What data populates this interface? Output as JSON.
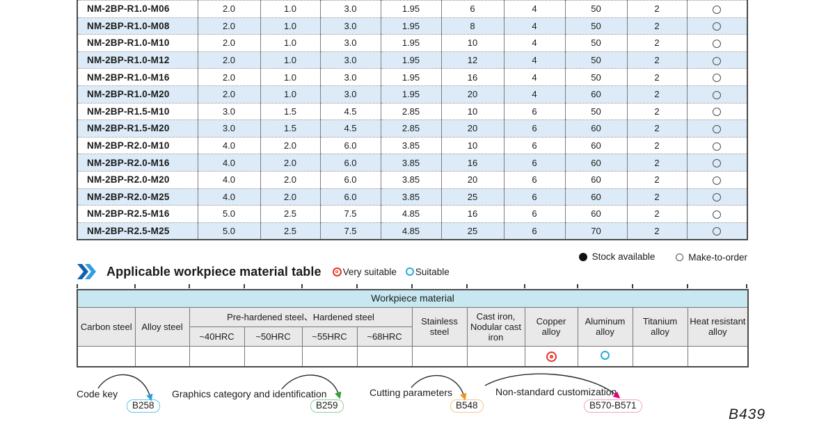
{
  "page": {
    "number": "B439"
  },
  "spec_table": {
    "rows": [
      {
        "model": "NM-2BP-R1.0-M06",
        "values": [
          "2.0",
          "1.0",
          "3.0",
          "1.95",
          "6",
          "4",
          "50",
          "2"
        ],
        "stock": "make_to_order"
      },
      {
        "model": "NM-2BP-R1.0-M08",
        "values": [
          "2.0",
          "1.0",
          "3.0",
          "1.95",
          "8",
          "4",
          "50",
          "2"
        ],
        "stock": "make_to_order"
      },
      {
        "model": "NM-2BP-R1.0-M10",
        "values": [
          "2.0",
          "1.0",
          "3.0",
          "1.95",
          "10",
          "4",
          "50",
          "2"
        ],
        "stock": "make_to_order"
      },
      {
        "model": "NM-2BP-R1.0-M12",
        "values": [
          "2.0",
          "1.0",
          "3.0",
          "1.95",
          "12",
          "4",
          "50",
          "2"
        ],
        "stock": "make_to_order"
      },
      {
        "model": "NM-2BP-R1.0-M16",
        "values": [
          "2.0",
          "1.0",
          "3.0",
          "1.95",
          "16",
          "4",
          "50",
          "2"
        ],
        "stock": "make_to_order"
      },
      {
        "model": "NM-2BP-R1.0-M20",
        "values": [
          "2.0",
          "1.0",
          "3.0",
          "1.95",
          "20",
          "4",
          "60",
          "2"
        ],
        "stock": "make_to_order"
      },
      {
        "model": "NM-2BP-R1.5-M10",
        "values": [
          "3.0",
          "1.5",
          "4.5",
          "2.85",
          "10",
          "6",
          "50",
          "2"
        ],
        "stock": "make_to_order"
      },
      {
        "model": "NM-2BP-R1.5-M20",
        "values": [
          "3.0",
          "1.5",
          "4.5",
          "2.85",
          "20",
          "6",
          "60",
          "2"
        ],
        "stock": "make_to_order"
      },
      {
        "model": "NM-2BP-R2.0-M10",
        "values": [
          "4.0",
          "2.0",
          "6.0",
          "3.85",
          "10",
          "6",
          "60",
          "2"
        ],
        "stock": "make_to_order"
      },
      {
        "model": "NM-2BP-R2.0-M16",
        "values": [
          "4.0",
          "2.0",
          "6.0",
          "3.85",
          "16",
          "6",
          "60",
          "2"
        ],
        "stock": "make_to_order"
      },
      {
        "model": "NM-2BP-R2.0-M20",
        "values": [
          "4.0",
          "2.0",
          "6.0",
          "3.85",
          "20",
          "6",
          "60",
          "2"
        ],
        "stock": "make_to_order"
      },
      {
        "model": "NM-2BP-R2.0-M25",
        "values": [
          "4.0",
          "2.0",
          "6.0",
          "3.85",
          "25",
          "6",
          "60",
          "2"
        ],
        "stock": "make_to_order"
      },
      {
        "model": "NM-2BP-R2.5-M16",
        "values": [
          "5.0",
          "2.5",
          "7.5",
          "4.85",
          "16",
          "6",
          "60",
          "2"
        ],
        "stock": "make_to_order"
      },
      {
        "model": "NM-2BP-R2.5-M25",
        "values": [
          "5.0",
          "2.5",
          "7.5",
          "4.85",
          "25",
          "6",
          "70",
          "2"
        ],
        "stock": "make_to_order"
      }
    ],
    "stock_legend": {
      "available": "Stock available",
      "make_to_order": "Make-to-order"
    }
  },
  "material_section": {
    "title": "Applicable workpiece material table",
    "legend": {
      "very_suitable": "Very suitable",
      "suitable": "Suitable"
    }
  },
  "material_table": {
    "title": "Workpiece material",
    "group_header": "Pre-hardened steel、Hardened steel",
    "columns": {
      "carbon": "Carbon steel",
      "alloy": "Alloy steel",
      "hrc": [
        "~40HRC",
        "~50HRC",
        "~55HRC",
        "~68HRC"
      ],
      "stainless": "Stainless steel",
      "cast_iron": "Cast iron, Nodular cast iron",
      "copper": "Copper alloy",
      "aluminum": "Aluminum alloy",
      "titanium": "Titanium alloy",
      "heat_resistant": "Heat resistant alloy"
    },
    "ratings": [
      "",
      "",
      "",
      "",
      "",
      "",
      "",
      "",
      "very_suitable",
      "suitable",
      "",
      ""
    ]
  },
  "references": [
    {
      "label": "Code key",
      "badge": "B258",
      "badge_color": "#5fc5e8",
      "arrow_color": "#2d9fd8"
    },
    {
      "label": "Graphics category and identification",
      "badge": "B259",
      "badge_color": "#90cf9b",
      "arrow_color": "#2f9e3f"
    },
    {
      "label": "Cutting parameters",
      "badge": "B548",
      "badge_color": "#f2c98f",
      "arrow_color": "#f5921e"
    },
    {
      "label": "Non-standard customization",
      "badge": "B570-B571",
      "badge_color": "#f4a3c8",
      "arrow_color": "#e6007e"
    }
  ],
  "colors": {
    "row_stripe": "#dcebf7",
    "material_title_bg": "#c7e7f1",
    "header_bg": "#e9e9e9",
    "very_suitable": "#e8332a",
    "suitable": "#29abe2"
  }
}
